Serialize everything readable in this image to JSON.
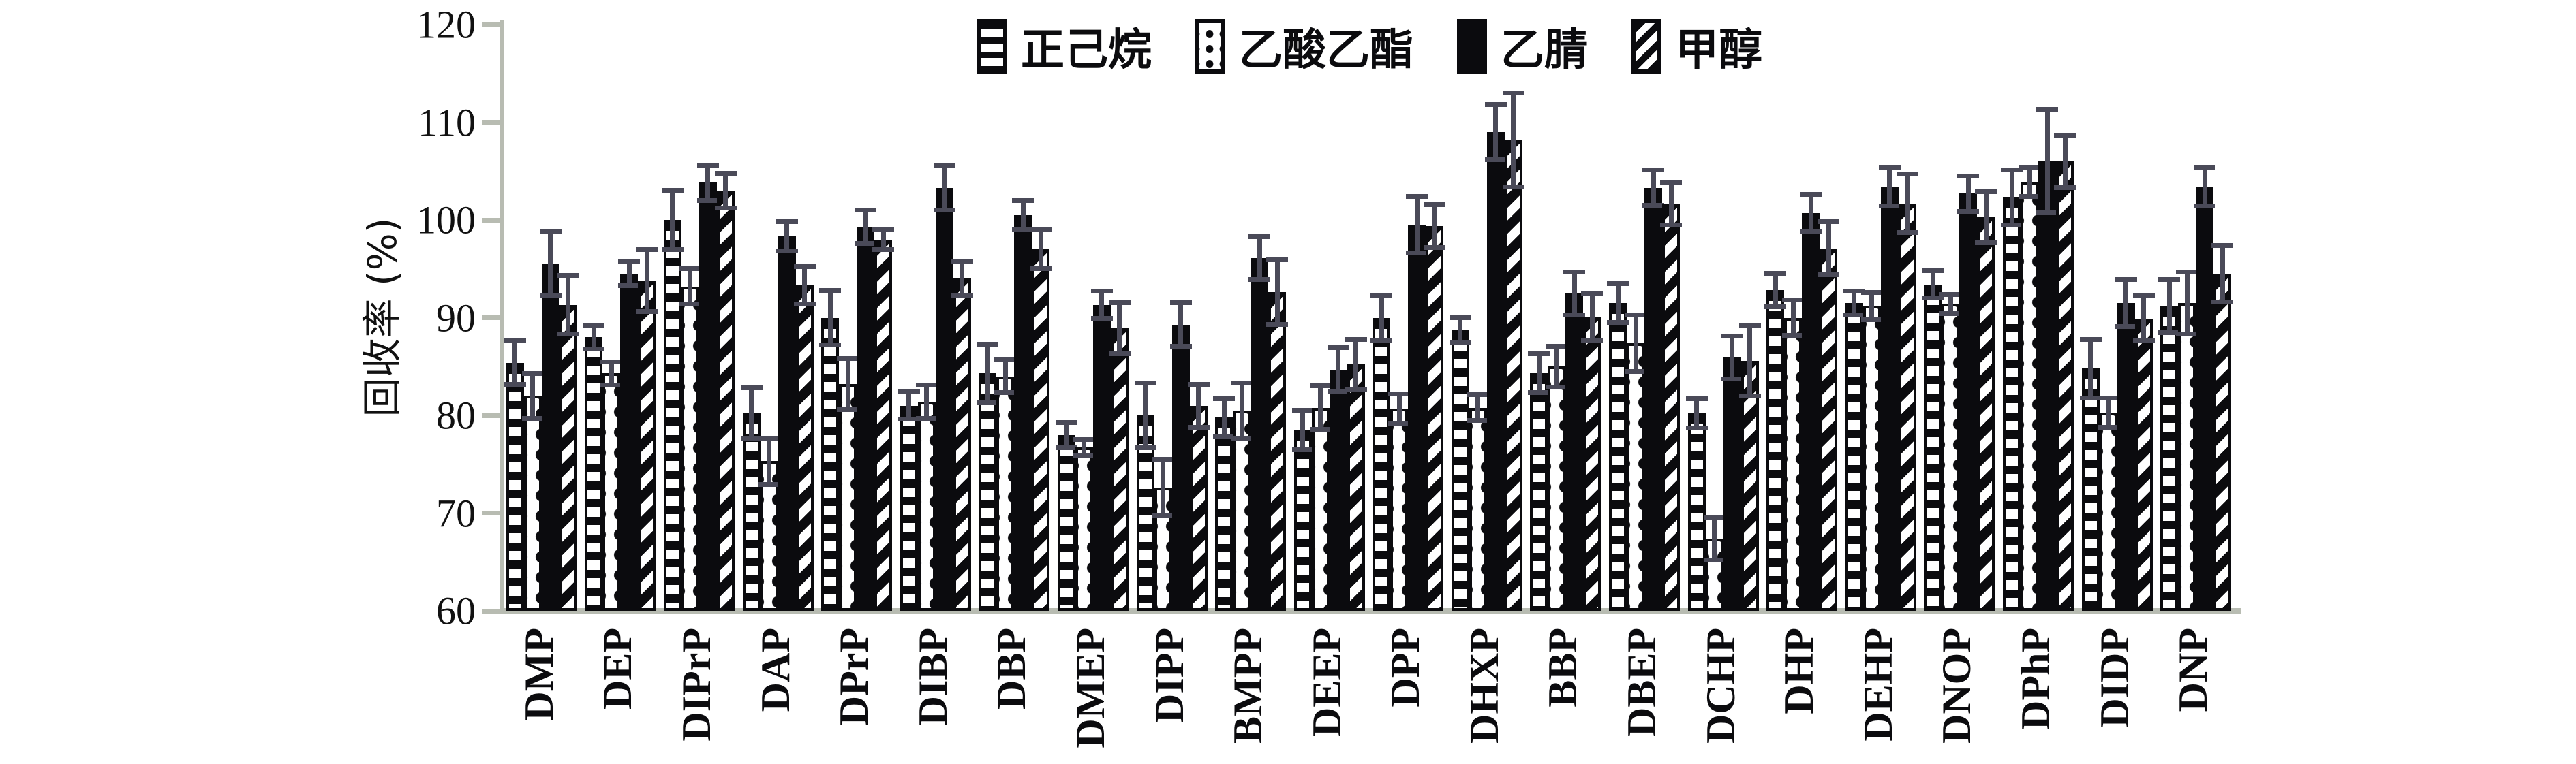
{
  "axes": {
    "ylabel": "回收率 (%)",
    "ylim": [
      60,
      120
    ],
    "y_ticks": [
      60,
      70,
      80,
      90,
      100,
      110,
      120
    ],
    "axis_color": "#b8bcb2",
    "text_color": "#111111"
  },
  "legend": {
    "items": [
      {
        "label": "正己烷",
        "pattern": "hlines"
      },
      {
        "label": "乙酸乙酯",
        "pattern": "dots"
      },
      {
        "label": "乙腈",
        "pattern": "solid"
      },
      {
        "label": "甲醇",
        "pattern": "diagonal"
      }
    ]
  },
  "chart_data": {
    "type": "bar",
    "title": "",
    "xlabel": "",
    "ylabel": "回收率 (%)",
    "ylim": [
      60,
      120
    ],
    "grid": false,
    "legend_position": "top-center",
    "bar_color": "#0b0b0e",
    "error_bar_color": "#4a4a58",
    "categories": [
      "DMP",
      "DEP",
      "DIPrP",
      "DAP",
      "DPrP",
      "DIBP",
      "DBP",
      "DMEP",
      "DIPP",
      "BMPP",
      "DEEP",
      "DPP",
      "DHXP",
      "BBP",
      "DBEP",
      "DCHP",
      "DHP",
      "DEHP",
      "DNOP",
      "DPhP",
      "DIDP",
      "DNP"
    ],
    "series": [
      {
        "name": "正己烷",
        "pattern": "hlines",
        "values": [
          85.4,
          88.0,
          100.0,
          80.2,
          90.0,
          81.0,
          84.3,
          78.0,
          80.0,
          79.8,
          78.5,
          90.0,
          88.7,
          84.3,
          91.5,
          80.2,
          92.8,
          91.5,
          93.4,
          102.3,
          84.8,
          91.2
        ],
        "errors": [
          2.2,
          1.2,
          3.0,
          2.6,
          2.8,
          1.4,
          3.0,
          1.3,
          3.3,
          1.9,
          2.0,
          2.3,
          1.3,
          2.0,
          2.0,
          1.5,
          1.7,
          1.2,
          1.4,
          2.8,
          3.0,
          2.7
        ]
      },
      {
        "name": "乙酸乙酯",
        "pattern": "dots",
        "values": [
          82.0,
          84.3,
          93.2,
          75.3,
          83.2,
          81.4,
          84.0,
          76.7,
          72.6,
          80.5,
          80.8,
          80.7,
          80.8,
          85.0,
          87.4,
          67.4,
          90.0,
          91.2,
          91.4,
          103.9,
          80.3,
          91.5
        ],
        "errors": [
          2.3,
          1.2,
          1.8,
          2.4,
          2.6,
          1.7,
          1.7,
          0.8,
          2.9,
          2.8,
          2.2,
          1.5,
          1.3,
          2.1,
          2.9,
          2.2,
          1.8,
          1.4,
          1.0,
          1.5,
          1.5,
          3.2
        ]
      },
      {
        "name": "乙腈",
        "pattern": "solid",
        "values": [
          95.5,
          94.5,
          103.8,
          98.3,
          99.3,
          103.3,
          100.5,
          91.3,
          89.3,
          96.1,
          84.7,
          99.5,
          109.0,
          92.5,
          103.3,
          85.9,
          100.7,
          103.4,
          102.7,
          106.0,
          91.5,
          103.4
        ],
        "errors": [
          3.3,
          1.2,
          1.8,
          1.5,
          1.7,
          2.3,
          1.5,
          1.4,
          2.2,
          2.2,
          2.2,
          2.9,
          2.8,
          2.2,
          1.8,
          2.2,
          1.9,
          2.0,
          1.8,
          5.3,
          2.4,
          2.0
        ]
      },
      {
        "name": "甲醇",
        "pattern": "diagonal",
        "values": [
          91.3,
          93.8,
          103.0,
          93.3,
          98.0,
          94.0,
          97.0,
          88.9,
          81.0,
          92.6,
          85.2,
          99.4,
          108.2,
          90.1,
          101.7,
          85.6,
          97.1,
          101.7,
          100.3,
          106.0,
          89.9,
          94.5
        ],
        "errors": [
          3.0,
          3.2,
          1.8,
          1.9,
          1.0,
          1.8,
          2.0,
          2.6,
          2.2,
          3.3,
          2.6,
          2.2,
          4.8,
          2.4,
          2.2,
          3.6,
          2.7,
          3.0,
          2.6,
          2.7,
          2.3,
          2.9
        ]
      }
    ]
  }
}
